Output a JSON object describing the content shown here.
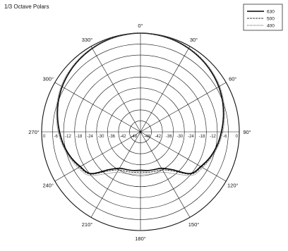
{
  "chart_data": {
    "type": "polar",
    "title": "1/3 Octave Polars",
    "angle_ticks": [
      {
        "deg": 0,
        "label": "0°"
      },
      {
        "deg": 30,
        "label": "30°"
      },
      {
        "deg": 60,
        "label": "60°"
      },
      {
        "deg": 90,
        "label": "90°"
      },
      {
        "deg": 120,
        "label": "120°"
      },
      {
        "deg": 150,
        "label": "150°"
      },
      {
        "deg": 180,
        "label": "180°"
      },
      {
        "deg": 210,
        "label": "210°"
      },
      {
        "deg": 240,
        "label": "240°"
      },
      {
        "deg": 270,
        "label": "270°"
      },
      {
        "deg": 300,
        "label": "300°"
      },
      {
        "deg": 330,
        "label": "330°"
      }
    ],
    "radial_labels": [
      "0",
      "-6",
      "-12",
      "-18",
      "-24",
      "-30",
      "-36",
      "-42",
      "-48"
    ],
    "radial_range_db": [
      -54,
      0
    ],
    "grid": true,
    "legend_position": "top-right",
    "series": [
      {
        "name": "630",
        "angles_deg": [
          0,
          10,
          20,
          30,
          40,
          50,
          60,
          70,
          80,
          90,
          100,
          110,
          120,
          130,
          140,
          150,
          160,
          170,
          180,
          190,
          200,
          210,
          220,
          230,
          240,
          250,
          260,
          270,
          280,
          290,
          300,
          310,
          320,
          330,
          340,
          350
        ],
        "values_db": [
          0,
          -0.2,
          -0.6,
          -1.3,
          -2.2,
          -3.3,
          -4.6,
          -6.2,
          -8,
          -9.8,
          -11.5,
          -13.5,
          -16,
          -18.5,
          -27,
          -31,
          -32,
          -32.5,
          -33,
          -32.5,
          -32,
          -31,
          -27,
          -18.5,
          -16,
          -13.5,
          -11.5,
          -9.8,
          -8,
          -6.2,
          -4.6,
          -3.3,
          -2.2,
          -1.3,
          -0.6,
          -0.2
        ]
      },
      {
        "name": "500",
        "angles_deg": [
          0,
          10,
          20,
          30,
          40,
          50,
          60,
          70,
          80,
          90,
          100,
          110,
          120,
          130,
          140,
          150,
          160,
          170,
          180,
          190,
          200,
          210,
          220,
          230,
          240,
          250,
          260,
          270,
          280,
          290,
          300,
          310,
          320,
          330,
          340,
          350
        ],
        "values_db": [
          0,
          -0.2,
          -0.5,
          -1.2,
          -2,
          -3.1,
          -4.4,
          -6,
          -7.8,
          -9.5,
          -11.2,
          -13.2,
          -15.5,
          -18,
          -26,
          -30,
          -31,
          -31.5,
          -32,
          -31.5,
          -31,
          -30,
          -26,
          -18,
          -15.5,
          -13.2,
          -11.2,
          -9.5,
          -7.8,
          -6,
          -4.4,
          -3.1,
          -2,
          -1.2,
          -0.5,
          -0.2
        ]
      },
      {
        "name": "400",
        "angles_deg": [
          0,
          10,
          20,
          30,
          40,
          50,
          60,
          70,
          80,
          90,
          100,
          110,
          120,
          130,
          140,
          150,
          160,
          170,
          180,
          190,
          200,
          210,
          220,
          230,
          240,
          250,
          260,
          270,
          280,
          290,
          300,
          310,
          320,
          330,
          340,
          350
        ],
        "values_db": [
          0,
          -0.1,
          -0.4,
          -1,
          -1.8,
          -2.8,
          -4,
          -5.6,
          -7.4,
          -9,
          -10.8,
          -12.8,
          -14.8,
          -17,
          -24,
          -28.5,
          -29.8,
          -30.5,
          -31,
          -30.5,
          -29.8,
          -28.5,
          -24,
          -17,
          -14.8,
          -12.8,
          -10.8,
          -9,
          -7.4,
          -5.6,
          -4,
          -2.8,
          -1.8,
          -1,
          -0.4,
          -0.1
        ]
      }
    ]
  }
}
